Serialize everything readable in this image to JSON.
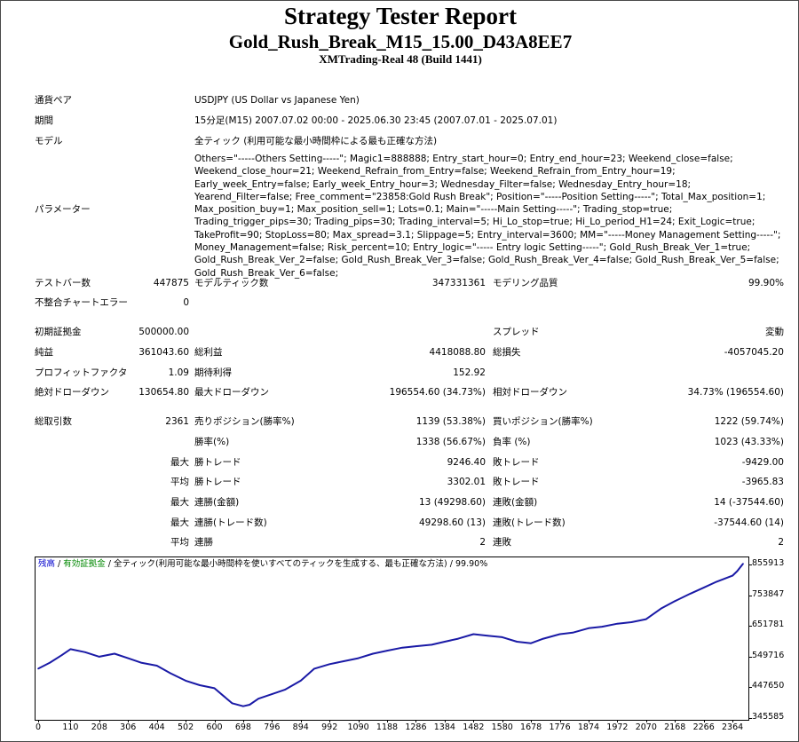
{
  "header": {
    "title": "Strategy Tester Report",
    "ea_name": "Gold_Rush_Break_M15_15.00_D43A8EE7",
    "server": "XMTrading-Real 48 (Build 1441)"
  },
  "info": {
    "symbol_label": "通貨ペア",
    "symbol_value": "USDJPY (US Dollar vs Japanese Yen)",
    "period_label": "期間",
    "period_value": "15分足(M15) 2007.07.02 00:00 - 2025.06.30 23:45 (2007.07.01 - 2025.07.01)",
    "model_label": "モデル",
    "model_value": "全ティック (利用可能な最小時間枠による最も正確な方法)",
    "params_label": "パラメーター",
    "params_value": "Others=\"-----Others Setting-----\"; Magic1=888888; Entry_start_hour=0; Entry_end_hour=23; Weekend_close=false; Weekend_close_hour=21; Weekend_Refrain_from_Entry=false; Weekend_Refrain_from_Entry_hour=19; Early_week_Entry=false; Early_week_Entry_hour=3; Wednesday_Filter=false; Wednesday_Entry_hour=18; Yearend_Filter=false; Free_comment=\"23858:Gold Rush Break\"; Position=\"-----Position Setting-----\"; Total_Max_position=1; Max_position_buy=1; Max_position_sell=1; Lots=0.1; Main=\"-----Main Setting-----\"; Trading_stop=true; Trading_trigger_pips=30; Trading_pips=30; Trading_interval=5; Hi_Lo_stop=true; Hi_Lo_period_H1=24; Exit_Logic=true; TakeProfit=90; StopLoss=80; Max_spread=3.1; Slippage=5; Entry_interval=3600; MM=\"-----Money Management Setting-----\"; Money_Management=false; Risk_percent=10; Entry_logic=\"----- Entry logic Setting-----\"; Gold_Rush_Break_Ver_1=true; Gold_Rush_Break_Ver_2=false; Gold_Rush_Break_Ver_3=false; Gold_Rush_Break_Ver_4=false; Gold_Rush_Break_Ver_5=false; Gold_Rush_Break_Ver_6=false;"
  },
  "stats": {
    "bars_label": "テストバー数",
    "bars_value": "447875",
    "ticks_label": "モデルティック数",
    "ticks_value": "347331361",
    "quality_label": "モデリング品質",
    "quality_value": "99.90%",
    "mismatch_label": "不整合チャートエラー",
    "mismatch_value": "0",
    "deposit_label": "初期証拠金",
    "deposit_value": "500000.00",
    "spread_label": "スプレッド",
    "spread_value": "変動",
    "net_label": "純益",
    "net_value": "361043.60",
    "gross_profit_label": "総利益",
    "gross_profit_value": "4418088.80",
    "gross_loss_label": "総損失",
    "gross_loss_value": "-4057045.20",
    "pf_label": "プロフィットファクタ",
    "pf_value": "1.09",
    "expected_label": "期待利得",
    "expected_value": "152.92",
    "abs_dd_label": "絶対ドローダウン",
    "abs_dd_value": "130654.80",
    "max_dd_label": "最大ドローダウン",
    "max_dd_value": "196554.60 (34.73%)",
    "rel_dd_label": "相対ドローダウン",
    "rel_dd_value": "34.73% (196554.60)",
    "trades_label": "総取引数",
    "trades_value": "2361",
    "short_label": "売りポジション(勝率%)",
    "short_value": "1139 (53.38%)",
    "long_label": "買いポジション(勝率%)",
    "long_value": "1222 (59.74%)",
    "winrate_label": "勝率(%)",
    "winrate_value": "1338 (56.67%)",
    "lossrate_label": "負率 (%)",
    "lossrate_value": "1023 (43.33%)",
    "max_word": "最大",
    "avg_word": "平均",
    "win_trade_label": "勝トレード",
    "max_win_value": "9246.40",
    "loss_trade_label": "敗トレード",
    "max_loss_value": "-9429.00",
    "avg_win_value": "3302.01",
    "avg_loss_value": "-3965.83",
    "cons_wins_label": "連勝(金額)",
    "cons_wins_value": "13 (49298.60)",
    "cons_losses_label": "連敗(金額)",
    "cons_losses_value": "14 (-37544.60)",
    "cons_profit_label": "連勝(トレード数)",
    "cons_profit_value": "49298.60 (13)",
    "cons_loss_label": "連敗(トレード数)",
    "cons_loss_value": "-37544.60 (14)",
    "avg_cons_win_label": "連勝",
    "avg_cons_win_value": "2",
    "avg_cons_loss_label": "連敗",
    "avg_cons_loss_value": "2"
  },
  "chart_legend": {
    "balance": "残高",
    "sep1": " / ",
    "equity": "有効証拠金",
    "sep2": " / ",
    "model": "全ティック(利用可能な最小時間枠を使いすべてのティックを生成する、最も正確な方法)",
    "quality": " / 99.90%"
  },
  "colors": {
    "line": "#1a1aa6",
    "balance_label": "#0000cc",
    "equity_label": "#008800"
  },
  "chart_data": {
    "type": "line",
    "title": "",
    "xlabel": "",
    "ylabel": "",
    "x_ticks": [
      0,
      110,
      208,
      306,
      404,
      502,
      600,
      698,
      796,
      894,
      992,
      1090,
      1188,
      1286,
      1384,
      1482,
      1580,
      1678,
      1776,
      1874,
      1972,
      2070,
      2168,
      2266,
      2364
    ],
    "y_ticks": [
      345585,
      447650,
      549716,
      651781,
      753847,
      855913
    ],
    "xlim": [
      0,
      2400
    ],
    "ylim": [
      345585,
      875000
    ],
    "series": [
      {
        "x": [
          0,
          40,
          80,
          110,
          160,
          208,
          260,
          306,
          350,
          404,
          450,
          502,
          550,
          600,
          630,
          660,
          698,
          720,
          750,
          796,
          840,
          894,
          940,
          992,
          1040,
          1090,
          1140,
          1188,
          1240,
          1286,
          1340,
          1384,
          1430,
          1482,
          1530,
          1580,
          1630,
          1678,
          1720,
          1776,
          1820,
          1874,
          1920,
          1972,
          2020,
          2070,
          2120,
          2168,
          2220,
          2266,
          2310,
          2364,
          2380,
          2400
        ],
        "values": [
          510000,
          530000,
          555000,
          575000,
          565000,
          550000,
          560000,
          545000,
          530000,
          520000,
          495000,
          470000,
          455000,
          445000,
          420000,
          395000,
          385000,
          390000,
          410000,
          425000,
          440000,
          470000,
          510000,
          525000,
          535000,
          545000,
          560000,
          570000,
          580000,
          585000,
          590000,
          600000,
          610000,
          625000,
          620000,
          615000,
          600000,
          595000,
          610000,
          625000,
          630000,
          645000,
          650000,
          660000,
          665000,
          675000,
          710000,
          735000,
          760000,
          780000,
          800000,
          820000,
          835000,
          860000
        ]
      }
    ]
  }
}
